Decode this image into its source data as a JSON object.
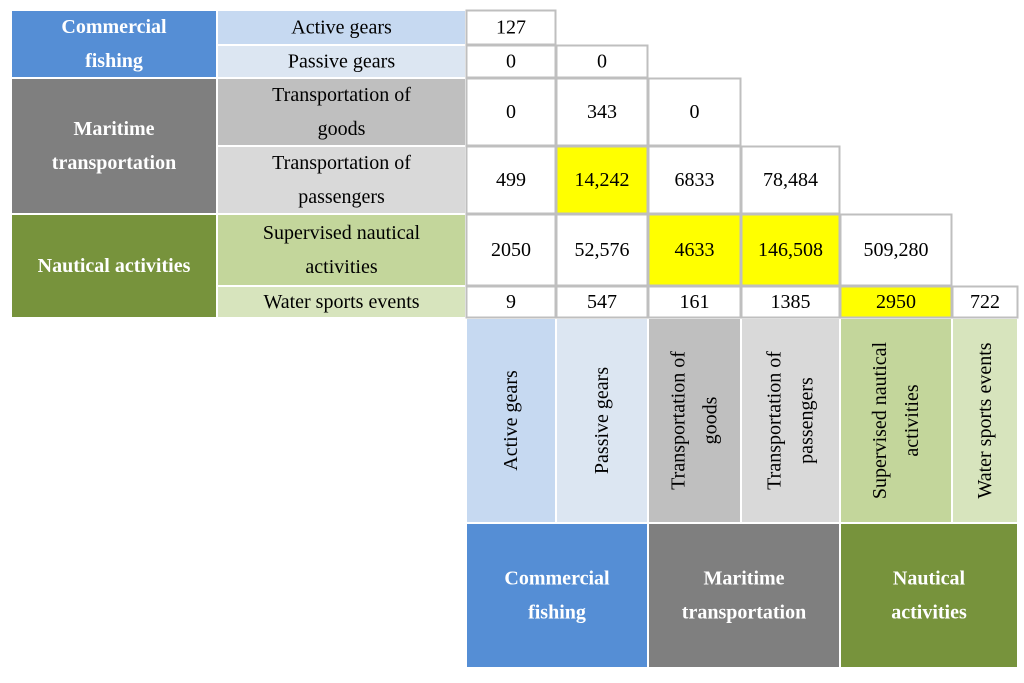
{
  "colors": {
    "commercial_fishing_group": "#558ed5",
    "commercial_fishing_sub": "#c6d9f1",
    "commercial_fishing_sub_alt": "#dce6f2",
    "maritime_group": "#7f7f7f",
    "maritime_sub": "#bfbfbf",
    "maritime_sub_alt": "#d9d9d9",
    "nautical_group": "#77933c",
    "nautical_sub": "#c3d69b",
    "nautical_sub_alt": "#d7e4bd",
    "highlight": "#ffff00",
    "border": "#bfbfbf",
    "text": "#000000",
    "group_text": "#ffffff"
  },
  "chart_data": {
    "type": "table",
    "groups": [
      {
        "id": "cf",
        "label": "Commercial fishing",
        "row_lines": [
          "Commercial",
          "fishing"
        ],
        "col_lines": [
          "Commercial",
          "fishing"
        ]
      },
      {
        "id": "mt",
        "label": "Maritime transportation",
        "row_lines": [
          "Maritime",
          "transportation"
        ],
        "col_lines": [
          "Maritime",
          "transportation"
        ]
      },
      {
        "id": "na",
        "label": "Nautical activities",
        "row_lines": [
          "Nautical activities"
        ],
        "col_lines": [
          "Nautical",
          "activities"
        ]
      }
    ],
    "activities": [
      {
        "group": "cf",
        "label": "Active gears",
        "row_lines": [
          "Active gears"
        ],
        "col_lines": [
          "Active gears"
        ]
      },
      {
        "group": "cf",
        "label": "Passive gears",
        "row_lines": [
          "Passive gears"
        ],
        "col_lines": [
          "Passive gears"
        ]
      },
      {
        "group": "mt",
        "label": "Transportation of goods",
        "row_lines": [
          "Transportation of",
          "goods"
        ],
        "col_lines": [
          "Transportation of",
          "goods"
        ]
      },
      {
        "group": "mt",
        "label": "Transportation of passengers",
        "row_lines": [
          "Transportation of",
          "passengers"
        ],
        "col_lines": [
          "Transportation of",
          "passengers"
        ]
      },
      {
        "group": "na",
        "label": "Supervised nautical activities",
        "row_lines": [
          "Supervised nautical",
          "activities"
        ],
        "col_lines": [
          "Supervised nautical",
          "activities"
        ]
      },
      {
        "group": "na",
        "label": "Water sports events",
        "row_lines": [
          "Water sports events"
        ],
        "col_lines": [
          "Water sports events"
        ]
      }
    ],
    "matrix": [
      [
        {
          "v": "127"
        }
      ],
      [
        {
          "v": "0"
        },
        {
          "v": "0"
        }
      ],
      [
        {
          "v": "0"
        },
        {
          "v": "343"
        },
        {
          "v": "0"
        }
      ],
      [
        {
          "v": "499"
        },
        {
          "v": "14,242",
          "hl": true
        },
        {
          "v": "6833"
        },
        {
          "v": "78,484"
        }
      ],
      [
        {
          "v": "2050"
        },
        {
          "v": "52,576"
        },
        {
          "v": "4633",
          "hl": true
        },
        {
          "v": "146,508",
          "hl": true
        },
        {
          "v": "509,280"
        }
      ],
      [
        {
          "v": "9"
        },
        {
          "v": "547"
        },
        {
          "v": "161"
        },
        {
          "v": "1385"
        },
        {
          "v": "2950",
          "hl": true
        },
        {
          "v": "722"
        }
      ]
    ]
  }
}
